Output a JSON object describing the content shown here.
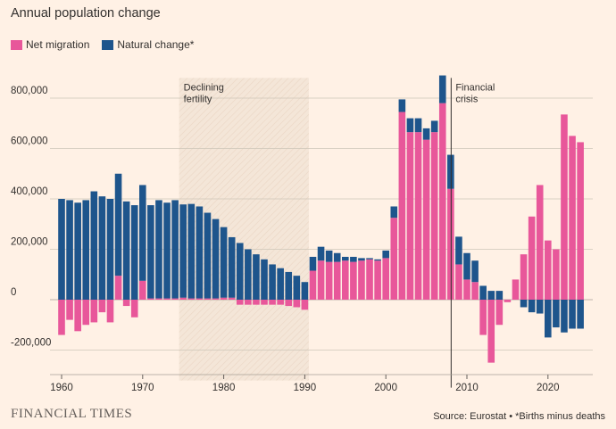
{
  "header": {
    "title": "Annual population change"
  },
  "footer": {
    "logo_text": "FINANCIAL TIMES",
    "source": "Source: Eurostat • *Births minus deaths"
  },
  "colors": {
    "background": "#fff1e5",
    "net_migration": "#e8579a",
    "natural_change": "#1e558c",
    "grid": "#cec6b9",
    "shade": "#f4e6d8",
    "text": "#33302e"
  },
  "chart_data": {
    "type": "bar",
    "stacked": true,
    "x": [
      1960,
      1961,
      1962,
      1963,
      1964,
      1965,
      1966,
      1967,
      1968,
      1969,
      1970,
      1971,
      1972,
      1973,
      1974,
      1975,
      1976,
      1977,
      1978,
      1979,
      1980,
      1981,
      1982,
      1983,
      1984,
      1985,
      1986,
      1987,
      1988,
      1989,
      1990,
      1991,
      1992,
      1993,
      1994,
      1995,
      1996,
      1997,
      1998,
      1999,
      2000,
      2001,
      2002,
      2003,
      2004,
      2005,
      2006,
      2007,
      2008,
      2009,
      2010,
      2011,
      2012,
      2013,
      2014,
      2015,
      2016,
      2017,
      2018,
      2019,
      2020,
      2021,
      2022,
      2023,
      2024
    ],
    "series": [
      {
        "name": "Net migration",
        "values": [
          -140000,
          -80000,
          -125000,
          -100000,
          -90000,
          -50000,
          -90000,
          95000,
          -25000,
          -70000,
          75000,
          5000,
          5000,
          5000,
          5000,
          8000,
          5000,
          5000,
          5000,
          5000,
          8000,
          8000,
          -20000,
          -20000,
          -20000,
          -20000,
          -20000,
          -20000,
          -25000,
          -30000,
          -40000,
          115000,
          155000,
          150000,
          150000,
          155000,
          150000,
          155000,
          160000,
          155000,
          165000,
          325000,
          745000,
          665000,
          665000,
          635000,
          665000,
          780000,
          440000,
          140000,
          80000,
          70000,
          -140000,
          -250000,
          -100000,
          -10000,
          80000,
          180000,
          330000,
          455000,
          235000,
          200000,
          735000,
          650000,
          625000
        ]
      },
      {
        "name": "Natural change*",
        "values": [
          400000,
          395000,
          385000,
          395000,
          430000,
          410000,
          400000,
          405000,
          390000,
          375000,
          380000,
          370000,
          390000,
          380000,
          390000,
          370000,
          375000,
          365000,
          340000,
          315000,
          280000,
          240000,
          225000,
          200000,
          180000,
          160000,
          140000,
          125000,
          110000,
          95000,
          70000,
          55000,
          55000,
          45000,
          35000,
          15000,
          20000,
          10000,
          5000,
          5000,
          30000,
          45000,
          50000,
          55000,
          55000,
          45000,
          45000,
          110000,
          135000,
          110000,
          105000,
          85000,
          55000,
          35000,
          35000,
          0,
          0,
          -30000,
          -50000,
          -55000,
          -150000,
          -110000,
          -130000,
          -115000,
          -115000
        ]
      }
    ],
    "ylim": [
      -250000,
      880000
    ],
    "y_ticks": [
      -200000,
      0,
      200000,
      400000,
      600000,
      800000
    ],
    "y_tick_labels": [
      "-200,000",
      "0",
      "200,000",
      "400,000",
      "600,000",
      "800,000"
    ],
    "x_ticks": [
      1960,
      1970,
      1980,
      1990,
      2000,
      2010,
      2020
    ],
    "x_tick_labels": [
      "1960",
      "1970",
      "1980",
      "1990",
      "2000",
      "2010",
      "2020"
    ],
    "grid": true,
    "legend_position": "top-left",
    "annotations": {
      "shaded_period": {
        "from": 1974.5,
        "to": 1990.5,
        "label_lines": [
          "Declining",
          "fertility"
        ]
      },
      "reference_line": {
        "at": 2008,
        "label_lines": [
          "Financial",
          "crisis"
        ]
      }
    }
  }
}
